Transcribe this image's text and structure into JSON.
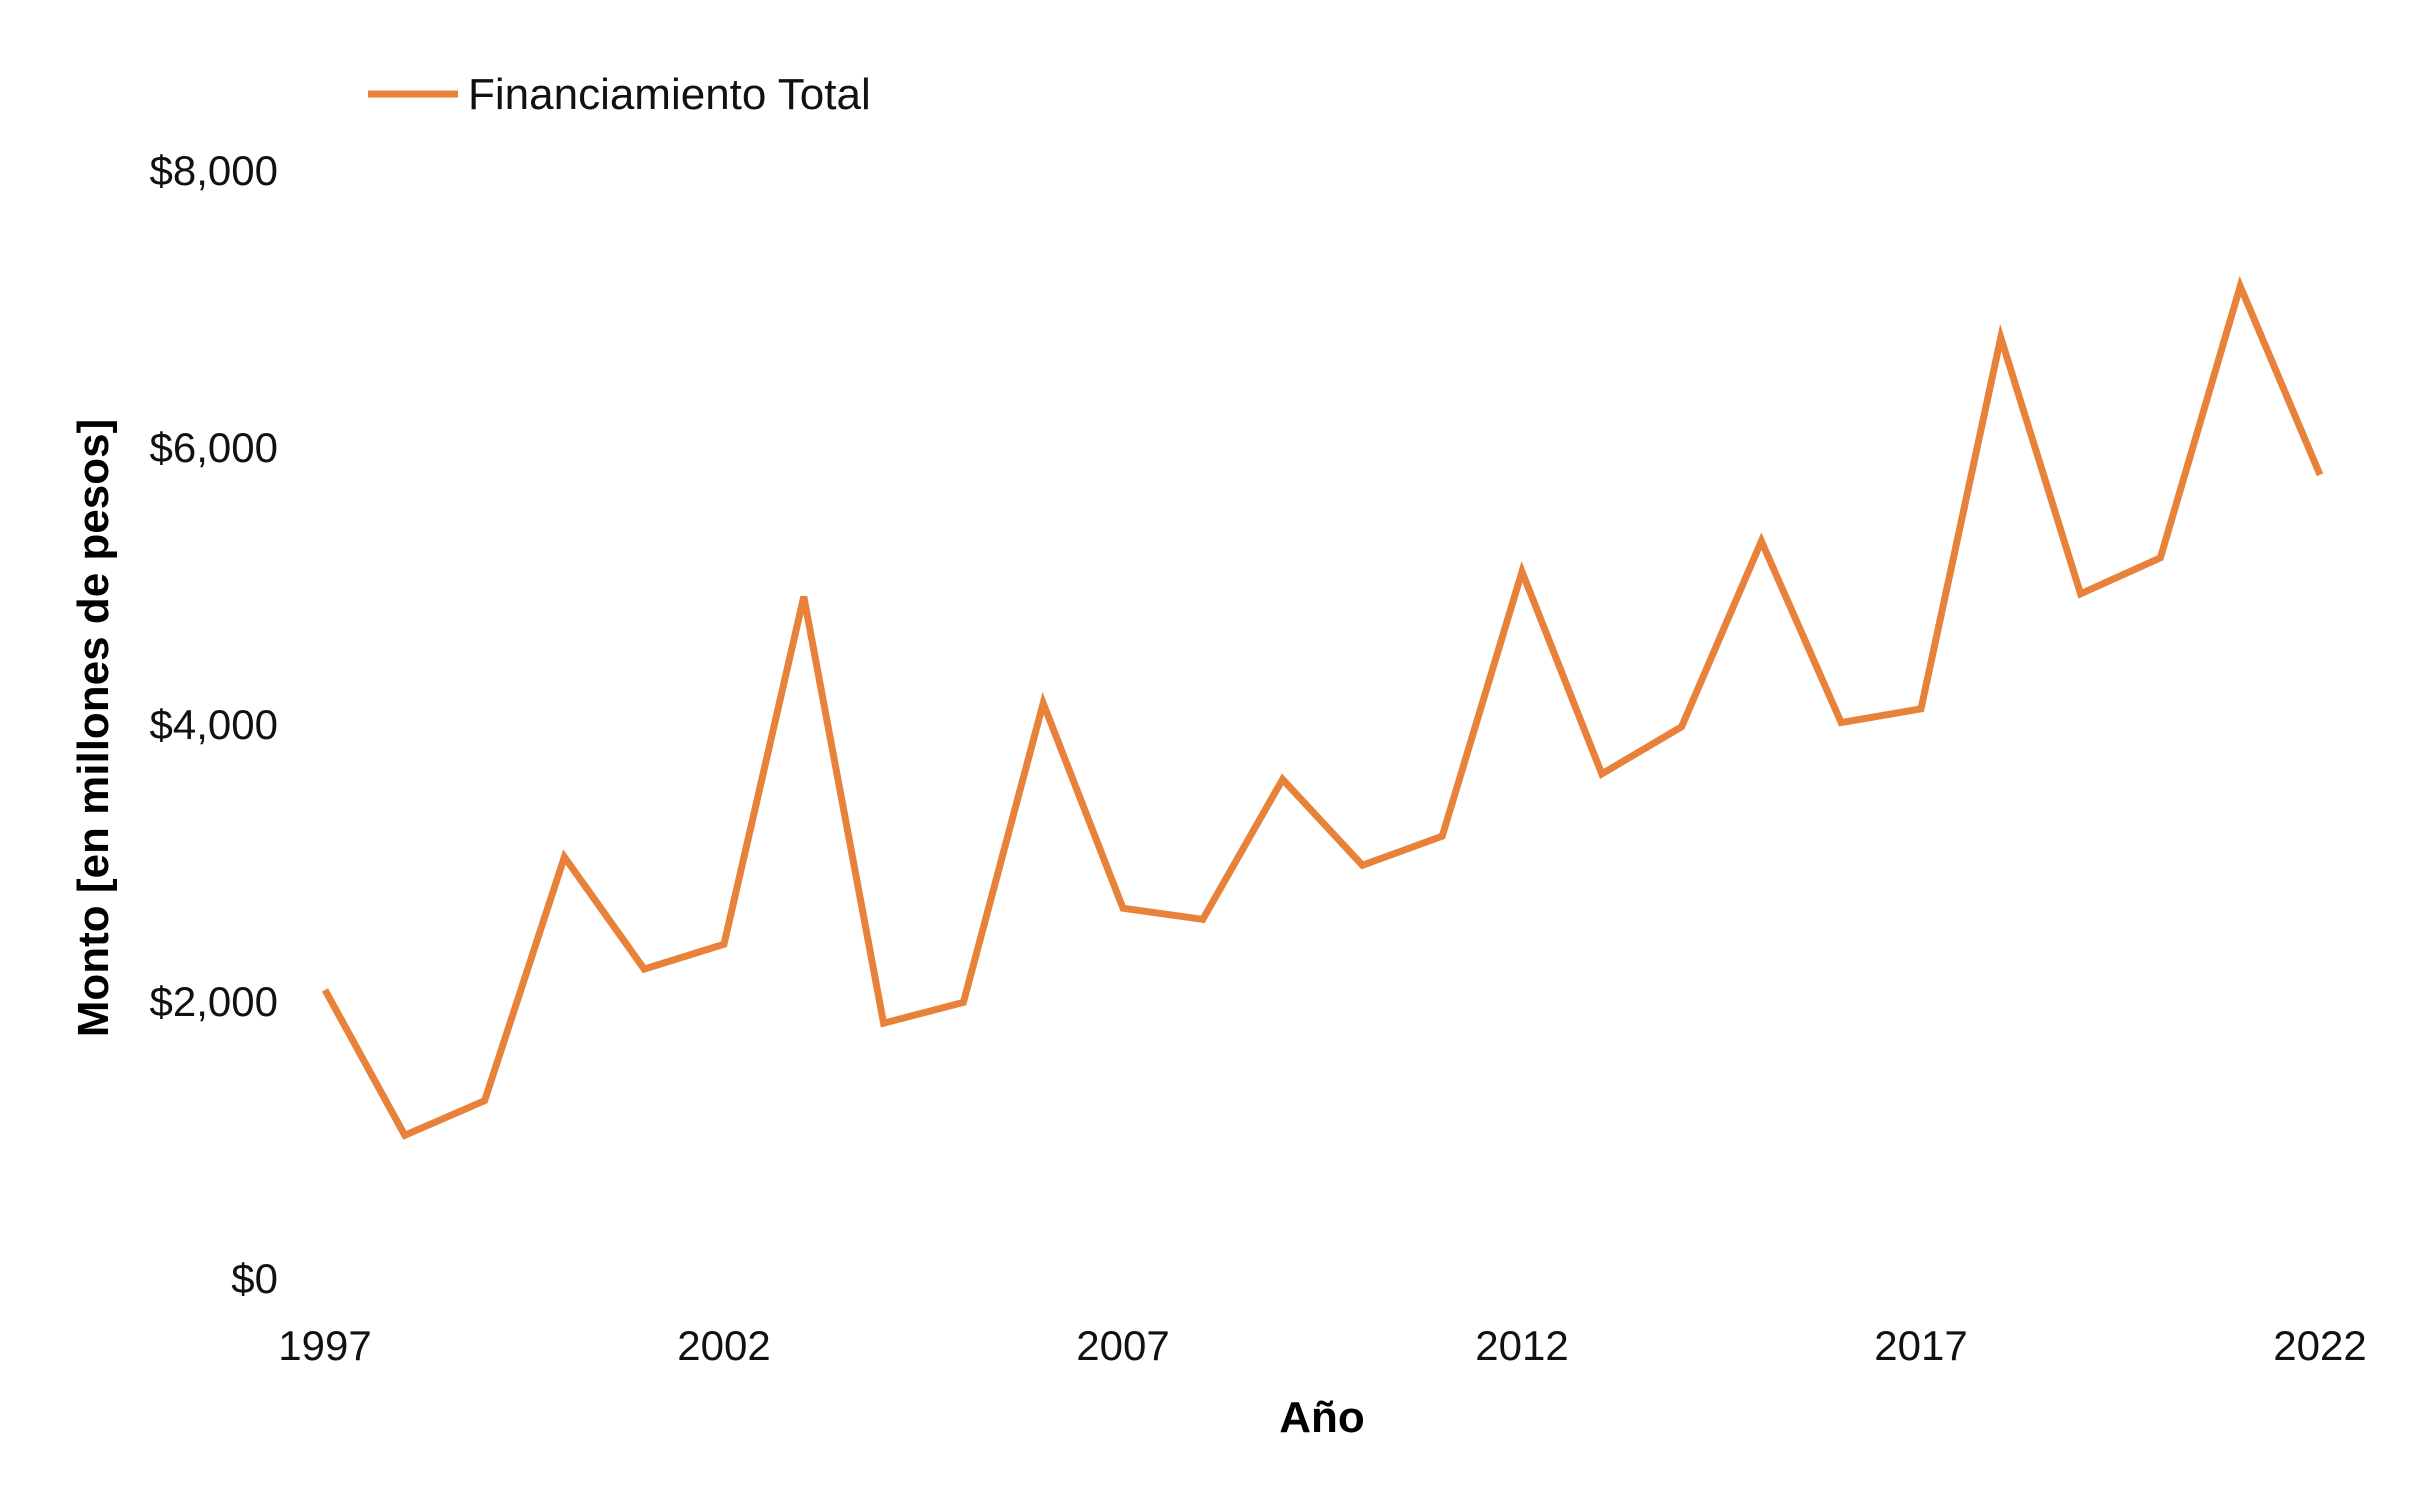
{
  "chart_data": {
    "type": "line",
    "title": "",
    "xlabel": "Año",
    "ylabel": "Monto [en millones de pesos]",
    "x": [
      1997,
      1998,
      1999,
      2000,
      2001,
      2002,
      2003,
      2004,
      2005,
      2006,
      2007,
      2008,
      2009,
      2010,
      2011,
      2012,
      2013,
      2014,
      2015,
      2016,
      2017,
      2018,
      2019,
      2020,
      2021,
      2022
    ],
    "series": [
      {
        "name": "Financiamiento Total",
        "color": "#E8823A",
        "values": [
          2080,
          1030,
          1280,
          3040,
          2230,
          2410,
          4920,
          1840,
          1990,
          4150,
          2670,
          2590,
          3600,
          2980,
          3190,
          5100,
          3640,
          3980,
          5320,
          4010,
          4110,
          6790,
          4940,
          5200,
          7160,
          5800
        ]
      }
    ],
    "x_ticks": [
      "1997",
      "2002",
      "2007",
      "2012",
      "2017",
      "2022"
    ],
    "y_ticks": [
      "$0",
      "$2,000",
      "$4,000",
      "$6,000",
      "$8,000"
    ],
    "y_tick_values": [
      0,
      2000,
      4000,
      6000,
      8000
    ],
    "ylim": [
      0,
      8000
    ],
    "xlim": [
      1997,
      2022
    ],
    "grid": false,
    "legend_position": "top-left"
  }
}
